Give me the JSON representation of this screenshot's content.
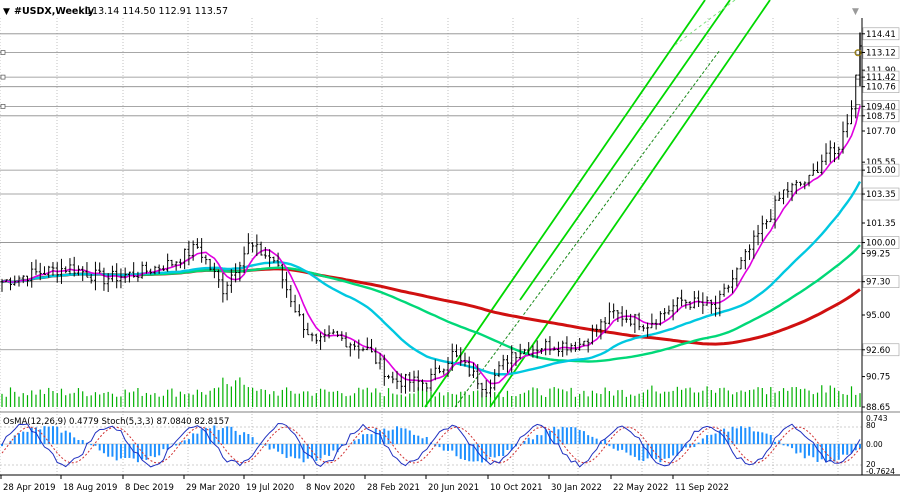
{
  "header": {
    "symbol": "#USDX,Weekly",
    "ohlc": "113.14 114.50 112.91 113.57"
  },
  "osc_header": "OsMA(12,26,9) 0.4779 Stoch(5,3,3) 87.0840 82.8157",
  "colors": {
    "background": "#ffffff",
    "grid": "#c0c0c0",
    "bars": "#000000",
    "ma_fast": "#e000e0",
    "ma_mid": "#00c8e0",
    "ma_green": "#00d878",
    "ma_red": "#d01010",
    "channel": "#00d800",
    "osma": "#1e90ff",
    "stoch_main": "#2030c0",
    "stoch_signal": "#d03030",
    "volume": "#00b000",
    "level_label_bg": "#ffffff"
  },
  "chart_data": {
    "type": "candlestick",
    "price_axis": {
      "ticks": [
        114.41,
        113.12,
        111.9,
        111.42,
        110.76,
        109.4,
        108.75,
        107.7,
        105.55,
        105.0,
        103.35,
        101.35,
        100.0,
        99.25,
        97.3,
        95.0,
        92.6,
        90.75,
        88.65
      ],
      "boxed": [
        114.41,
        113.12,
        111.42,
        110.76,
        109.4,
        108.75,
        105.0,
        103.35,
        100.0,
        97.3,
        92.6
      ],
      "range": [
        88.65,
        115.5
      ]
    },
    "levels": [
      114.41,
      113.12,
      111.42,
      110.76,
      109.4,
      108.75,
      105.0,
      103.35,
      100.0,
      97.3,
      92.6
    ],
    "time_axis": [
      "28 Apr 2019",
      "18 Aug 2019",
      "8 Dec 2019",
      "29 Mar 2020",
      "19 Jul 2020",
      "8 Nov 2020",
      "28 Feb 2021",
      "20 Jun 2021",
      "10 Oct 2021",
      "30 Jan 2022",
      "22 May 2022",
      "11 Sep 2022"
    ],
    "close_path": [
      [
        0,
        97.3
      ],
      [
        8,
        97.9
      ],
      [
        16,
        98.3
      ],
      [
        24,
        97.5
      ],
      [
        32,
        97.9
      ],
      [
        40,
        98.6
      ],
      [
        46,
        99.7
      ],
      [
        52,
        96.8
      ],
      [
        58,
        99.8
      ],
      [
        64,
        98.8
      ],
      [
        70,
        94.8
      ],
      [
        74,
        92.9
      ],
      [
        78,
        93.6
      ],
      [
        86,
        92.6
      ],
      [
        92,
        90.5
      ],
      [
        100,
        90.3
      ],
      [
        106,
        92.3
      ],
      [
        110,
        91.1
      ],
      [
        114,
        90.0
      ],
      [
        120,
        92.4
      ],
      [
        128,
        92.9
      ],
      [
        136,
        93.0
      ],
      [
        144,
        95.1
      ],
      [
        152,
        94.4
      ],
      [
        160,
        96.0
      ],
      [
        168,
        95.5
      ],
      [
        176,
        99.5
      ],
      [
        184,
        103.5
      ],
      [
        190,
        104.3
      ],
      [
        194,
        106.2
      ],
      [
        196,
        106.0
      ],
      [
        198,
        107.5
      ],
      [
        200,
        109.5
      ],
      [
        202,
        113.57
      ]
    ],
    "osc_axis": {
      "osma": [
        0.743,
        0.0,
        -0.7624
      ],
      "stoch": [
        80,
        20
      ]
    }
  },
  "toolbar": {
    "dropdown_glyph": "▼",
    "close_glyph": "▼"
  }
}
